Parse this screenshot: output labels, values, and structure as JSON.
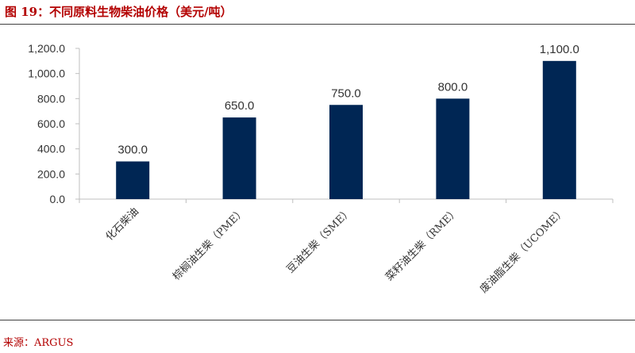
{
  "figure": {
    "title": "图 19：不同原料生物柴油价格（美元/吨）",
    "source": "来源：ARGUS"
  },
  "colors": {
    "bar": "#002654",
    "caption_red": "#b30000",
    "axis": "#bfbfbf",
    "text": "#333333"
  },
  "chart_data": {
    "type": "bar",
    "categories": [
      "化石柴油",
      "棕榈油生柴（PME）",
      "豆油生柴（SME）",
      "菜籽油生柴（RME）",
      "废油脂生柴（UCOME）"
    ],
    "series": [
      {
        "values": [
          300,
          650,
          750,
          800,
          1100
        ]
      }
    ],
    "data_labels": [
      "300.0",
      "650.0",
      "750.0",
      "800.0",
      "1,100.0"
    ],
    "y_ticks": [
      0,
      200,
      400,
      600,
      800,
      1000,
      1200
    ],
    "y_tick_labels": [
      "0.0",
      "200.0",
      "400.0",
      "600.0",
      "800.0",
      "1,000.0",
      "1,200.0"
    ],
    "ylim": [
      0,
      1200
    ],
    "title": "",
    "xlabel": "",
    "ylabel": "",
    "grid": false,
    "legend": "none"
  }
}
